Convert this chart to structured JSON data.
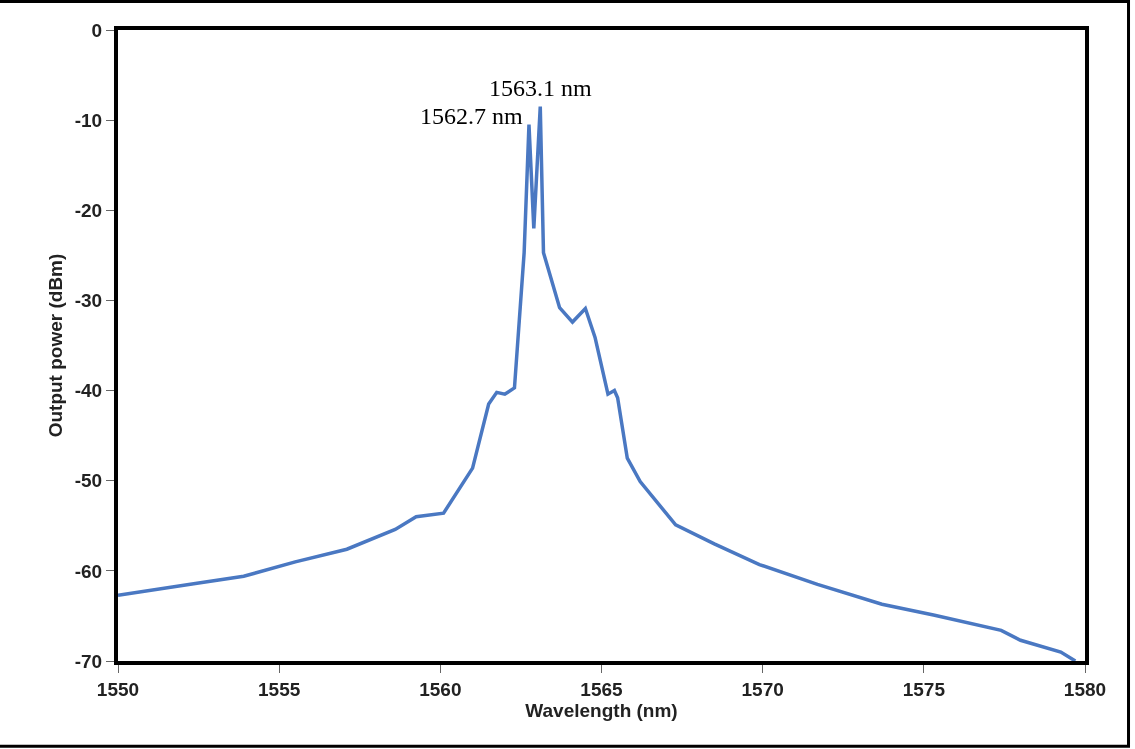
{
  "chart_data": {
    "type": "line",
    "xlabel": "Wavelength (nm)",
    "ylabel": "Output power (dBm)",
    "xlim": [
      1550,
      1580
    ],
    "xticks": [
      1550,
      1555,
      1560,
      1565,
      1570,
      1575,
      1580
    ],
    "ylim": [
      -70,
      0
    ],
    "yticks": [
      0,
      -10,
      -20,
      -30,
      -40,
      -50,
      -60,
      -70
    ],
    "marker": "none",
    "line_style": "solid",
    "annotations": [
      {
        "text": "1562.7 nm",
        "x": 1562.75,
        "y": -10.5
      },
      {
        "text": "1563.1 nm",
        "x": 1563.1,
        "y": -8.5
      }
    ],
    "series": [
      {
        "color": "#4a78c2",
        "x": [
          1550,
          1552.4,
          1553.9,
          1555.5,
          1557.1,
          1558.6,
          1559.25,
          1560.1,
          1561.0,
          1561.5,
          1561.75,
          1562.0,
          1562.3,
          1562.6,
          1562.75,
          1562.9,
          1563.1,
          1563.2,
          1563.7,
          1564.1,
          1564.5,
          1564.8,
          1565.2,
          1565.4,
          1565.5,
          1565.8,
          1566.2,
          1567.3,
          1568.5,
          1569.9,
          1571.7,
          1573.7,
          1575.3,
          1577.4,
          1578.0,
          1579.25,
          1579.7
        ],
        "values": [
          -62.7,
          -61.4,
          -60.6,
          -59.0,
          -57.6,
          -55.4,
          -54.0,
          -53.6,
          -48.6,
          -41.5,
          -40.2,
          -40.4,
          -39.7,
          -24.7,
          -10.5,
          -22.0,
          -8.5,
          -24.7,
          -30.8,
          -32.4,
          -30.9,
          -34.1,
          -40.4,
          -40.0,
          -40.8,
          -47.5,
          -50.1,
          -54.9,
          -57.0,
          -59.3,
          -61.5,
          -63.7,
          -64.9,
          -66.6,
          -67.7,
          -69.0,
          -70.0
        ]
      }
    ]
  }
}
